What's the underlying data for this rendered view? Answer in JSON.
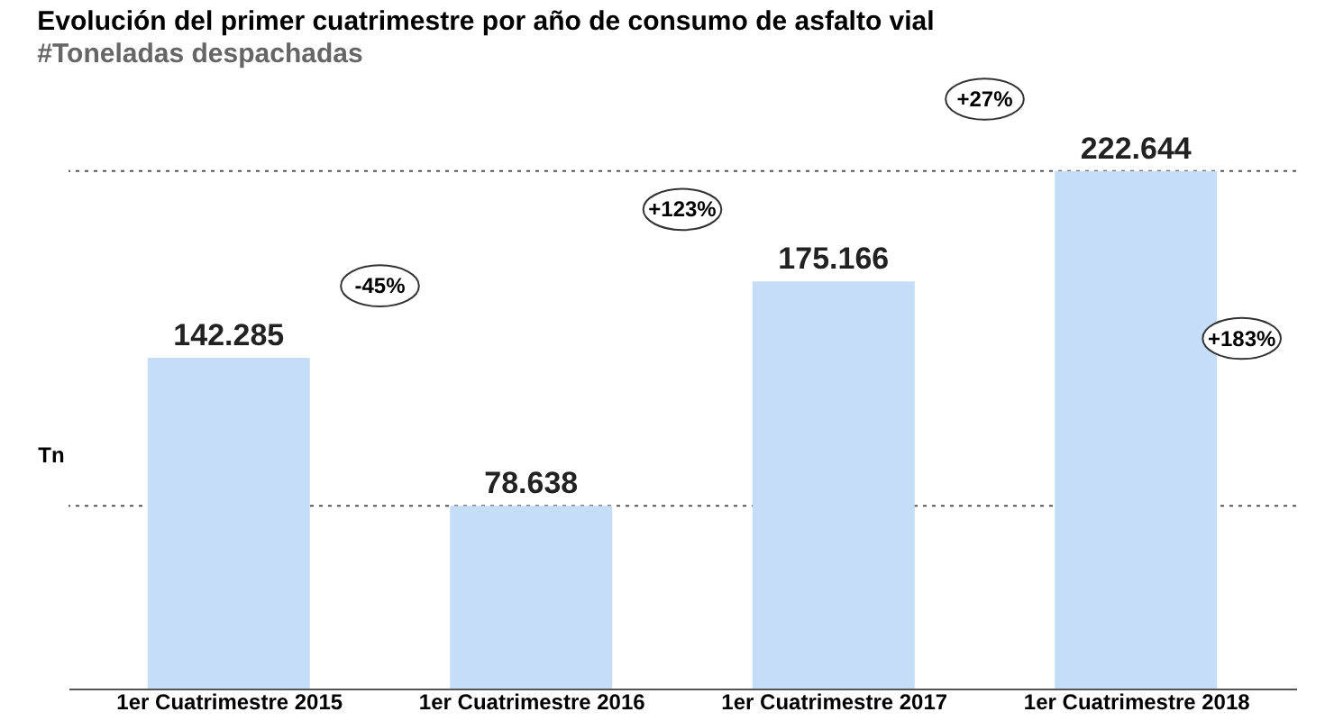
{
  "chart_data": {
    "type": "bar",
    "title": "Evolución del primer cuatrimestre por año de consumo de asfalto vial",
    "subtitle": "#Toneladas despachadas",
    "ylabel": "Tn",
    "categories": [
      "1er Cuatrimestre 2015",
      "1er Cuatrimestre 2016",
      "1er Cuatrimestre 2017",
      "1er Cuatrimestre 2018"
    ],
    "values": [
      142285,
      78638,
      175166,
      222644
    ],
    "color": "#c5ddf6",
    "value_labels": [
      "142.285",
      "78.638",
      "175.166",
      "222.644"
    ],
    "annotations": [
      "-45%",
      "+123%",
      "+27%",
      "+183%"
    ],
    "ref_lines": [
      {
        "axis": "y",
        "value": 78638,
        "label": null,
        "line_style": "dotted",
        "color": "#555555"
      },
      {
        "axis": "y",
        "value": 222644,
        "label": null,
        "line_style": "dotted",
        "color": "#555555"
      }
    ],
    "grid": false
  }
}
